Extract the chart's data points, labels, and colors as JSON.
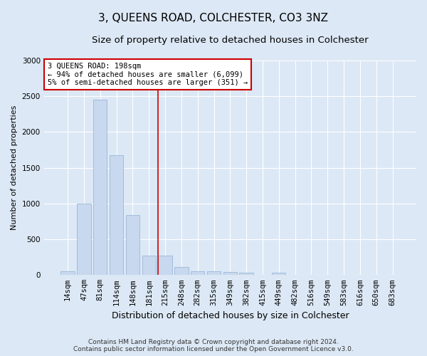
{
  "title": "3, QUEENS ROAD, COLCHESTER, CO3 3NZ",
  "subtitle": "Size of property relative to detached houses in Colchester",
  "xlabel": "Distribution of detached houses by size in Colchester",
  "ylabel": "Number of detached properties",
  "categories": [
    "14sqm",
    "47sqm",
    "81sqm",
    "114sqm",
    "148sqm",
    "181sqm",
    "215sqm",
    "248sqm",
    "282sqm",
    "315sqm",
    "349sqm",
    "382sqm",
    "415sqm",
    "449sqm",
    "482sqm",
    "516sqm",
    "549sqm",
    "583sqm",
    "616sqm",
    "650sqm",
    "683sqm"
  ],
  "values": [
    50,
    1000,
    2450,
    1680,
    840,
    270,
    270,
    110,
    55,
    50,
    45,
    30,
    0,
    35,
    0,
    0,
    0,
    0,
    0,
    0,
    0
  ],
  "bar_color": "#c8d8ee",
  "bar_edgecolor": "#9ab8d8",
  "vline_x_index": 5.55,
  "vline_color": "#cc0000",
  "annotation_text": "3 QUEENS ROAD: 198sqm\n← 94% of detached houses are smaller (6,099)\n5% of semi-detached houses are larger (351) →",
  "annotation_box_facecolor": "#ffffff",
  "annotation_box_edgecolor": "#cc0000",
  "background_color": "#dce8f5",
  "plot_bg_color": "#dce8f5",
  "grid_color": "#ffffff",
  "ylim": [
    0,
    3000
  ],
  "yticks": [
    0,
    500,
    1000,
    1500,
    2000,
    2500,
    3000
  ],
  "title_fontsize": 11,
  "subtitle_fontsize": 9.5,
  "xlabel_fontsize": 9,
  "ylabel_fontsize": 8,
  "tick_fontsize": 7.5,
  "annot_fontsize": 7.5,
  "footer_fontsize": 6.5,
  "footer_line1": "Contains HM Land Registry data © Crown copyright and database right 2024.",
  "footer_line2": "Contains public sector information licensed under the Open Government Licence v3.0."
}
